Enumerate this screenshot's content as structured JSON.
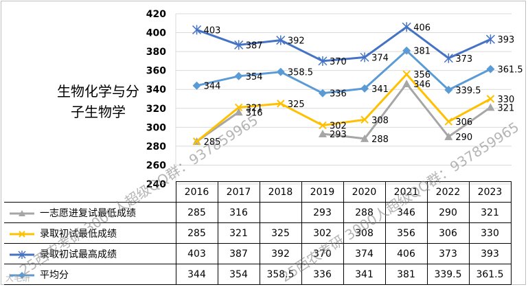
{
  "side_title": [
    "生物化学与分",
    "子生物学"
  ],
  "watermarks": [
    "25西农考研 3000人超级QQ群：937859965",
    "25西农考研 3000人超级QQ群：937859965"
  ],
  "logo_text": "大毛研",
  "chart_data": {
    "type": "line",
    "categories": [
      "2016",
      "2017",
      "2018",
      "2019",
      "2020",
      "2021",
      "2022",
      "2023"
    ],
    "ylim": [
      240,
      420
    ],
    "yticks": [
      240,
      260,
      280,
      300,
      320,
      340,
      360,
      380,
      400,
      420
    ],
    "grid": true,
    "series": [
      {
        "name": "一志愿进复试最低成绩",
        "values": [
          285,
          316,
          null,
          293,
          288,
          346,
          290,
          321
        ],
        "table_values": [
          "285",
          "316",
          "",
          "293",
          "288",
          "346",
          "290",
          "321"
        ],
        "color": "#a6a6a6",
        "marker": "triangle",
        "labels": [
          "",
          "316",
          "",
          "293",
          "288",
          "346",
          "290",
          "321"
        ]
      },
      {
        "name": "录取初试最低成绩",
        "values": [
          285,
          321,
          325,
          302,
          308,
          356,
          306,
          330
        ],
        "table_values": [
          "285",
          "321",
          "325",
          "302",
          "308",
          "356",
          "306",
          "330"
        ],
        "color": "#ffc000",
        "marker": "x",
        "labels": [
          "285",
          "321",
          "325",
          "302",
          "308",
          "356",
          "306",
          "330"
        ]
      },
      {
        "name": "录取初试最高成绩",
        "values": [
          403,
          387,
          392,
          370,
          374,
          406,
          373,
          393
        ],
        "table_values": [
          "403",
          "387",
          "392",
          "370",
          "374",
          "406",
          "373",
          "393"
        ],
        "color": "#4472c4",
        "marker": "star",
        "labels": [
          "403",
          "387",
          "392",
          "370",
          "374",
          "406",
          "373",
          "393"
        ]
      },
      {
        "name": "平均分",
        "values": [
          344,
          354,
          358.5,
          336,
          341,
          381,
          339.5,
          361.5
        ],
        "table_values": [
          "344",
          "354",
          "358.5",
          "336",
          "341",
          "381",
          "339.5",
          "361.5"
        ],
        "color": "#5b9bd5",
        "marker": "diamond",
        "labels": [
          "344",
          "354",
          "358.5",
          "336",
          "341",
          "381",
          "339.5",
          "361.5"
        ]
      }
    ]
  }
}
